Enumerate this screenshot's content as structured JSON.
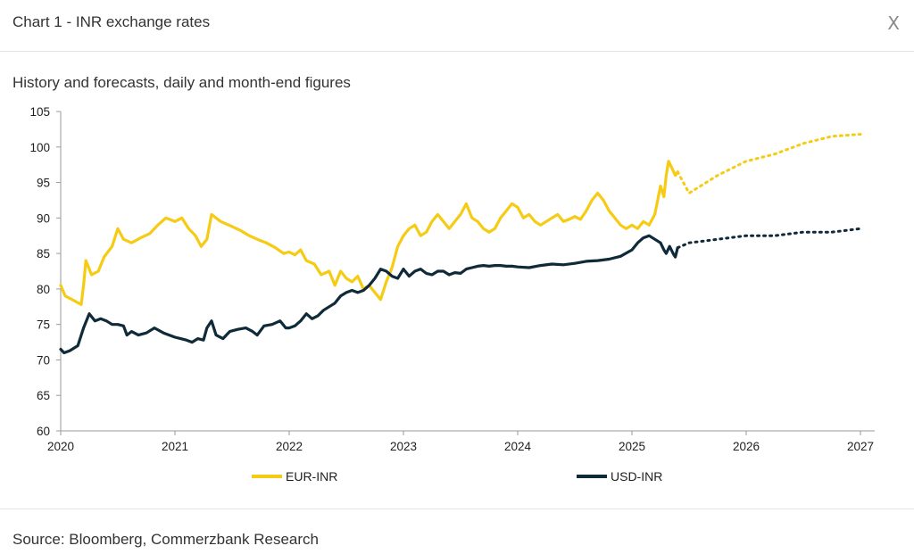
{
  "header": {
    "title": "Chart 1 - INR exchange rates",
    "close_label": "X"
  },
  "footer": {
    "source": "Source: Bloomberg, Commerzbank Research"
  },
  "colors": {
    "eur": "#f5cb14",
    "usd": "#0f2a38",
    "axis": "#9a9a9a"
  },
  "chart_data": {
    "type": "line",
    "subtitle": "History and forecasts, daily and month-end figures",
    "xlabel": "",
    "ylabel": "",
    "xlim": [
      2020,
      2027
    ],
    "ylim": [
      60,
      105
    ],
    "x_ticks": [
      "2020",
      "2021",
      "2022",
      "2023",
      "2024",
      "2025",
      "2026",
      "2027"
    ],
    "y_ticks": [
      60,
      65,
      70,
      75,
      80,
      85,
      90,
      95,
      100,
      105
    ],
    "grid": false,
    "legend_position": "bottom",
    "series": [
      {
        "name": "EUR-INR",
        "color": "#f5cb14",
        "history": [
          [
            2020.0,
            80.5
          ],
          [
            2020.04,
            79.0
          ],
          [
            2020.1,
            78.5
          ],
          [
            2020.18,
            77.8
          ],
          [
            2020.2,
            80.5
          ],
          [
            2020.22,
            84.0
          ],
          [
            2020.27,
            82.0
          ],
          [
            2020.33,
            82.5
          ],
          [
            2020.38,
            84.5
          ],
          [
            2020.45,
            86.0
          ],
          [
            2020.5,
            88.5
          ],
          [
            2020.55,
            87.0
          ],
          [
            2020.62,
            86.5
          ],
          [
            2020.7,
            87.2
          ],
          [
            2020.78,
            87.8
          ],
          [
            2020.85,
            89.0
          ],
          [
            2020.92,
            90.0
          ],
          [
            2021.0,
            89.5
          ],
          [
            2021.06,
            90.0
          ],
          [
            2021.12,
            88.5
          ],
          [
            2021.18,
            87.5
          ],
          [
            2021.23,
            86.0
          ],
          [
            2021.28,
            87.0
          ],
          [
            2021.32,
            90.5
          ],
          [
            2021.4,
            89.5
          ],
          [
            2021.5,
            88.8
          ],
          [
            2021.58,
            88.2
          ],
          [
            2021.65,
            87.5
          ],
          [
            2021.72,
            87.0
          ],
          [
            2021.8,
            86.5
          ],
          [
            2021.88,
            85.8
          ],
          [
            2021.95,
            85.0
          ],
          [
            2022.0,
            85.2
          ],
          [
            2022.05,
            84.8
          ],
          [
            2022.1,
            85.5
          ],
          [
            2022.15,
            84.0
          ],
          [
            2022.22,
            83.5
          ],
          [
            2022.28,
            82.0
          ],
          [
            2022.35,
            82.5
          ],
          [
            2022.4,
            80.5
          ],
          [
            2022.45,
            82.5
          ],
          [
            2022.5,
            81.5
          ],
          [
            2022.55,
            81.0
          ],
          [
            2022.6,
            81.8
          ],
          [
            2022.65,
            80.0
          ],
          [
            2022.7,
            80.5
          ],
          [
            2022.75,
            79.5
          ],
          [
            2022.8,
            78.5
          ],
          [
            2022.85,
            81.0
          ],
          [
            2022.9,
            83.0
          ],
          [
            2022.95,
            86.0
          ],
          [
            2023.0,
            87.5
          ],
          [
            2023.05,
            88.5
          ],
          [
            2023.1,
            89.0
          ],
          [
            2023.15,
            87.5
          ],
          [
            2023.2,
            88.0
          ],
          [
            2023.25,
            89.5
          ],
          [
            2023.3,
            90.5
          ],
          [
            2023.35,
            89.5
          ],
          [
            2023.4,
            88.5
          ],
          [
            2023.45,
            89.5
          ],
          [
            2023.5,
            90.5
          ],
          [
            2023.55,
            92.0
          ],
          [
            2023.6,
            90.0
          ],
          [
            2023.65,
            89.5
          ],
          [
            2023.7,
            88.5
          ],
          [
            2023.75,
            88.0
          ],
          [
            2023.8,
            88.5
          ],
          [
            2023.85,
            90.0
          ],
          [
            2023.9,
            91.0
          ],
          [
            2023.95,
            92.0
          ],
          [
            2024.0,
            91.5
          ],
          [
            2024.05,
            90.0
          ],
          [
            2024.1,
            90.5
          ],
          [
            2024.15,
            89.5
          ],
          [
            2024.2,
            89.0
          ],
          [
            2024.25,
            89.5
          ],
          [
            2024.3,
            90.0
          ],
          [
            2024.35,
            90.5
          ],
          [
            2024.4,
            89.5
          ],
          [
            2024.45,
            89.8
          ],
          [
            2024.5,
            90.2
          ],
          [
            2024.55,
            89.8
          ],
          [
            2024.6,
            91.0
          ],
          [
            2024.65,
            92.5
          ],
          [
            2024.7,
            93.5
          ],
          [
            2024.75,
            92.5
          ],
          [
            2024.8,
            91.0
          ],
          [
            2024.85,
            90.0
          ],
          [
            2024.9,
            89.0
          ],
          [
            2024.95,
            88.5
          ],
          [
            2025.0,
            89.0
          ],
          [
            2025.05,
            88.5
          ],
          [
            2025.1,
            89.5
          ],
          [
            2025.15,
            89.0
          ],
          [
            2025.2,
            90.5
          ],
          [
            2025.25,
            94.5
          ],
          [
            2025.28,
            93.0
          ],
          [
            2025.3,
            96.0
          ],
          [
            2025.32,
            98.0
          ],
          [
            2025.35,
            97.0
          ],
          [
            2025.38,
            96.0
          ],
          [
            2025.4,
            96.5
          ]
        ],
        "forecast": [
          [
            2025.4,
            96.5
          ],
          [
            2025.5,
            93.5
          ],
          [
            2025.75,
            96.0
          ],
          [
            2026.0,
            98.0
          ],
          [
            2026.25,
            99.0
          ],
          [
            2026.5,
            100.5
          ],
          [
            2026.75,
            101.5
          ],
          [
            2027.0,
            101.8
          ]
        ]
      },
      {
        "name": "USD-INR",
        "color": "#0f2a38",
        "history": [
          [
            2020.0,
            71.5
          ],
          [
            2020.03,
            71.0
          ],
          [
            2020.08,
            71.3
          ],
          [
            2020.15,
            72.0
          ],
          [
            2020.2,
            74.5
          ],
          [
            2020.25,
            76.5
          ],
          [
            2020.3,
            75.5
          ],
          [
            2020.35,
            75.8
          ],
          [
            2020.4,
            75.5
          ],
          [
            2020.45,
            75.0
          ],
          [
            2020.5,
            75.0
          ],
          [
            2020.55,
            74.8
          ],
          [
            2020.58,
            73.5
          ],
          [
            2020.62,
            74.0
          ],
          [
            2020.68,
            73.5
          ],
          [
            2020.75,
            73.8
          ],
          [
            2020.82,
            74.5
          ],
          [
            2020.9,
            73.8
          ],
          [
            2020.95,
            73.5
          ],
          [
            2021.0,
            73.2
          ],
          [
            2021.05,
            73.0
          ],
          [
            2021.1,
            72.8
          ],
          [
            2021.15,
            72.5
          ],
          [
            2021.2,
            73.0
          ],
          [
            2021.25,
            72.8
          ],
          [
            2021.28,
            74.5
          ],
          [
            2021.32,
            75.5
          ],
          [
            2021.36,
            73.5
          ],
          [
            2021.42,
            73.0
          ],
          [
            2021.48,
            74.0
          ],
          [
            2021.55,
            74.3
          ],
          [
            2021.62,
            74.5
          ],
          [
            2021.68,
            74.0
          ],
          [
            2021.72,
            73.5
          ],
          [
            2021.78,
            74.8
          ],
          [
            2021.85,
            75.0
          ],
          [
            2021.92,
            75.5
          ],
          [
            2021.97,
            74.5
          ],
          [
            2022.0,
            74.5
          ],
          [
            2022.05,
            74.8
          ],
          [
            2022.1,
            75.5
          ],
          [
            2022.15,
            76.5
          ],
          [
            2022.2,
            75.8
          ],
          [
            2022.25,
            76.2
          ],
          [
            2022.3,
            77.0
          ],
          [
            2022.35,
            77.5
          ],
          [
            2022.4,
            78.0
          ],
          [
            2022.45,
            79.0
          ],
          [
            2022.5,
            79.5
          ],
          [
            2022.55,
            79.8
          ],
          [
            2022.6,
            79.5
          ],
          [
            2022.65,
            79.8
          ],
          [
            2022.7,
            80.5
          ],
          [
            2022.75,
            81.5
          ],
          [
            2022.8,
            82.8
          ],
          [
            2022.85,
            82.5
          ],
          [
            2022.9,
            81.8
          ],
          [
            2022.95,
            81.5
          ],
          [
            2023.0,
            82.8
          ],
          [
            2023.05,
            81.8
          ],
          [
            2023.1,
            82.5
          ],
          [
            2023.15,
            82.8
          ],
          [
            2023.2,
            82.2
          ],
          [
            2023.25,
            82.0
          ],
          [
            2023.3,
            82.5
          ],
          [
            2023.35,
            82.5
          ],
          [
            2023.4,
            82.0
          ],
          [
            2023.45,
            82.3
          ],
          [
            2023.5,
            82.2
          ],
          [
            2023.55,
            82.8
          ],
          [
            2023.6,
            83.0
          ],
          [
            2023.65,
            83.2
          ],
          [
            2023.7,
            83.3
          ],
          [
            2023.75,
            83.2
          ],
          [
            2023.8,
            83.3
          ],
          [
            2023.85,
            83.3
          ],
          [
            2023.9,
            83.2
          ],
          [
            2023.95,
            83.2
          ],
          [
            2024.0,
            83.1
          ],
          [
            2024.1,
            83.0
          ],
          [
            2024.2,
            83.3
          ],
          [
            2024.3,
            83.5
          ],
          [
            2024.4,
            83.4
          ],
          [
            2024.5,
            83.6
          ],
          [
            2024.6,
            83.9
          ],
          [
            2024.7,
            84.0
          ],
          [
            2024.8,
            84.2
          ],
          [
            2024.9,
            84.6
          ],
          [
            2025.0,
            85.5
          ],
          [
            2025.05,
            86.5
          ],
          [
            2025.1,
            87.2
          ],
          [
            2025.15,
            87.5
          ],
          [
            2025.2,
            87.0
          ],
          [
            2025.25,
            86.5
          ],
          [
            2025.28,
            85.5
          ],
          [
            2025.3,
            85.0
          ],
          [
            2025.33,
            86.0
          ],
          [
            2025.36,
            85.0
          ],
          [
            2025.38,
            84.5
          ],
          [
            2025.4,
            85.8
          ]
        ],
        "forecast": [
          [
            2025.4,
            85.8
          ],
          [
            2025.5,
            86.5
          ],
          [
            2025.75,
            87.0
          ],
          [
            2026.0,
            87.5
          ],
          [
            2026.25,
            87.5
          ],
          [
            2026.5,
            88.0
          ],
          [
            2026.75,
            88.0
          ],
          [
            2027.0,
            88.5
          ]
        ]
      }
    ]
  }
}
